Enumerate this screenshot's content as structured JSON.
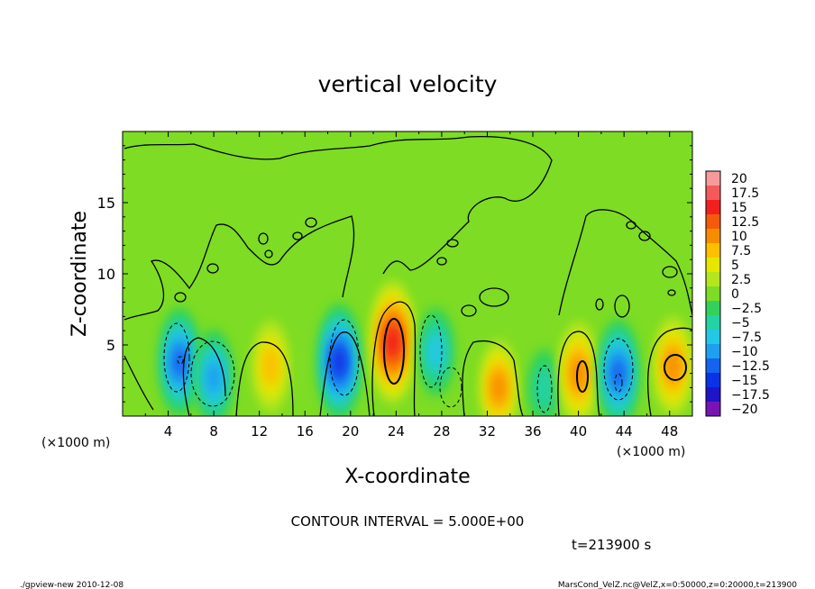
{
  "chart_data": {
    "type": "heatmap",
    "title": "vertical velocity",
    "xlabel": "X-coordinate",
    "ylabel": "Z-coordinate",
    "x_unit_left": "(×1000 m)",
    "x_unit_right": "(×1000 m)",
    "xlim": [
      0,
      50
    ],
    "ylim": [
      0,
      20
    ],
    "x_ticks": [
      "4",
      "8",
      "12",
      "16",
      "20",
      "24",
      "28",
      "32",
      "36",
      "40",
      "44",
      "48"
    ],
    "y_ticks": [
      "5",
      "10",
      "15"
    ],
    "colorbar_labels": [
      "20",
      "17.5",
      "15",
      "12.5",
      "10",
      "7.5",
      "5",
      "2.5",
      "0",
      "−2.5",
      "−5",
      "−7.5",
      "−10",
      "−12.5",
      "−15",
      "−17.5",
      "−20"
    ],
    "colorbar_colors": [
      "#f79a9a",
      "#f45a5a",
      "#f21f1f",
      "#f55a0a",
      "#f88c00",
      "#fcc000",
      "#e6e600",
      "#b4e61e",
      "#7ddc23",
      "#32d25a",
      "#23d2a5",
      "#23c8e6",
      "#1ea0f0",
      "#1464f0",
      "#0a32e6",
      "#1e14c8",
      "#7814b4"
    ],
    "contour_interval_text": "CONTOUR INTERVAL = 5.000E+00",
    "time_text": "t=213900 s",
    "features": [
      {
        "x": 5,
        "z": 3.8,
        "value": -12
      },
      {
        "x": 8,
        "z": 2.7,
        "value": -9
      },
      {
        "x": 13,
        "z": 3.5,
        "value": 8
      },
      {
        "x": 19,
        "z": 3.8,
        "value": -14
      },
      {
        "x": 23.7,
        "z": 5.2,
        "value": 16
      },
      {
        "x": 27.5,
        "z": 4.5,
        "value": -7
      },
      {
        "x": 33,
        "z": 2.0,
        "value": 9
      },
      {
        "x": 37,
        "z": 2.0,
        "value": -4
      },
      {
        "x": 40,
        "z": 3.0,
        "value": 11
      },
      {
        "x": 43.5,
        "z": 3.0,
        "value": -12
      },
      {
        "x": 48.3,
        "z": 3.5,
        "value": 10
      }
    ]
  },
  "footer": {
    "left": "./gpview-new  2010-12-08",
    "right": "MarsCond_VelZ.nc@VelZ,x=0:50000,z=0:20000,t=213900"
  }
}
